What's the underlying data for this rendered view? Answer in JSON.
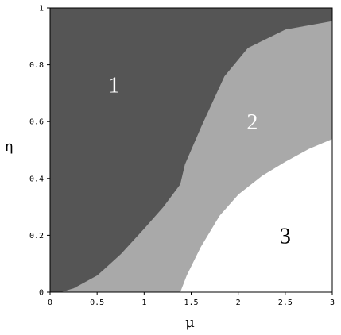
{
  "chart_data": {
    "type": "area",
    "title": "",
    "xlabel": "μ",
    "ylabel": "η",
    "xlim": [
      0,
      3
    ],
    "ylim": [
      0,
      1
    ],
    "x_ticks": [
      "0",
      "0.5",
      "1",
      "1.5",
      "2",
      "2.5",
      "3"
    ],
    "y_ticks": [
      "0",
      "0.2",
      "0.4",
      "0.6",
      "0.8",
      "1"
    ],
    "x_tick_values": [
      0,
      0.5,
      1,
      1.5,
      2,
      2.5,
      3
    ],
    "y_tick_values": [
      0,
      0.2,
      0.4,
      0.6,
      0.8,
      1
    ],
    "grid": false,
    "boundaries": [
      {
        "between": [
          "1",
          "2"
        ],
        "points": [
          [
            0.1,
            0
          ],
          [
            0.25,
            0.015
          ],
          [
            0.5,
            0.06
          ],
          [
            0.75,
            0.135
          ],
          [
            1.0,
            0.225
          ],
          [
            1.2,
            0.3
          ],
          [
            1.38,
            0.38
          ],
          [
            1.43,
            0.45
          ],
          [
            1.6,
            0.58
          ],
          [
            1.85,
            0.76
          ],
          [
            2.1,
            0.86
          ],
          [
            2.5,
            0.925
          ],
          [
            3.0,
            0.955
          ]
        ]
      },
      {
        "between": [
          "2",
          "3"
        ],
        "points": [
          [
            1.38,
            0
          ],
          [
            1.45,
            0.06
          ],
          [
            1.6,
            0.16
          ],
          [
            1.8,
            0.27
          ],
          [
            2.0,
            0.345
          ],
          [
            2.25,
            0.41
          ],
          [
            2.5,
            0.46
          ],
          [
            2.75,
            0.505
          ],
          [
            3.0,
            0.54
          ]
        ]
      }
    ],
    "regions": [
      {
        "label": "1",
        "color": "#555555",
        "label_pos": [
          0.68,
          0.73
        ],
        "label_color": "#ffffff"
      },
      {
        "label": "2",
        "color": "#a9a9a9",
        "label_pos": [
          2.15,
          0.6
        ],
        "label_color": "#ffffff"
      },
      {
        "label": "3",
        "color": "#ffffff",
        "label_pos": [
          2.5,
          0.2
        ],
        "label_color": "#000000"
      }
    ]
  }
}
